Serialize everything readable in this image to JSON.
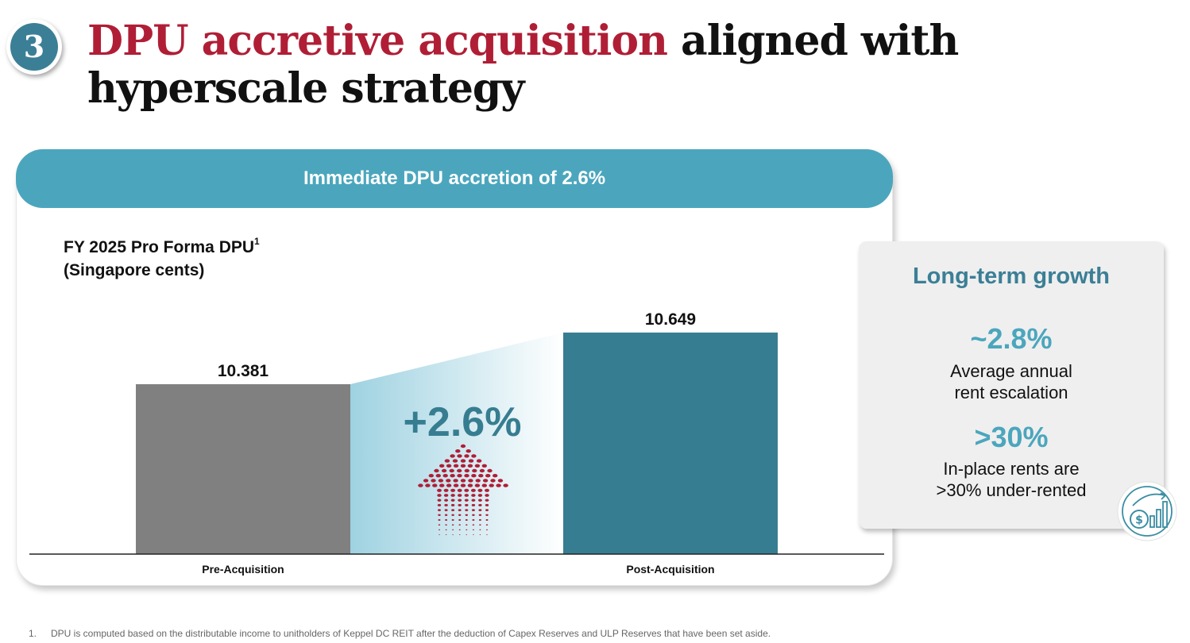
{
  "step_number": "3",
  "title": {
    "accent": "DPU accretive acquisition",
    "rest": " aligned with hyperscale strategy"
  },
  "card_header": "Immediate DPU accretion of 2.6%",
  "chart_title": {
    "line1": "FY 2025 Pro Forma DPU",
    "sup": "1",
    "line2": "(Singapore cents)"
  },
  "chart_data": {
    "type": "bar",
    "title": "FY 2025 Pro Forma DPU (Singapore cents)",
    "categories": [
      "Pre-Acquisition",
      "Post-Acquisition"
    ],
    "values": [
      10.381,
      10.649
    ],
    "data_labels": [
      "10.381",
      "10.649"
    ],
    "annotation": "+2.6%",
    "colors": [
      "#808080",
      "#377d91"
    ],
    "axis_baseline": 9.5
  },
  "side_panel": {
    "title": "Long-term growth",
    "stats": [
      {
        "value": "~2.8%",
        "desc_line1": "Average annual",
        "desc_line2": "rent escalation"
      },
      {
        "value": ">30%",
        "desc_line1": "In-place rents are",
        "desc_line2": ">30% under-rented"
      }
    ]
  },
  "icons": {
    "growth": "money-growth-chart-icon",
    "arrow": "dotted-up-arrow-icon"
  },
  "colors": {
    "accent_red": "#b01e36",
    "teal": "#4ba6bd",
    "dark_teal": "#3b7f96",
    "bar_grey": "#808080",
    "bar_teal": "#377d91"
  },
  "footnote": {
    "number": "1.",
    "text": "DPU is computed based on the distributable income to unitholders of Keppel DC REIT after the deduction of Capex Reserves and ULP Reserves that have been set aside."
  }
}
